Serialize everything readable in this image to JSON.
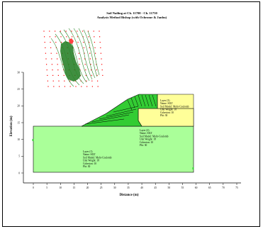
{
  "title": {
    "line1": "Soil Nailing at Ch. 11700 - Ch. 11750",
    "line2": "Analysis Method Bishop (with Ochrome & Janbu)"
  },
  "axes": {
    "xlabel": "Distance (m)",
    "ylabel": "Elevation (m)",
    "x_ticks": [
      "0",
      "5",
      "10",
      "15",
      "20",
      "25",
      "30",
      "35",
      "40",
      "45",
      "50",
      "55",
      "60",
      "65",
      "70",
      "75"
    ],
    "y_ticks": [
      "0",
      "5",
      "10",
      "15",
      "20",
      "25",
      "30"
    ]
  },
  "layers": [
    {
      "name": "Layer (1)",
      "lines": [
        "Layer (1)",
        "Name: SILT",
        "Soil Model: Mohr-Coulomb",
        "Unit Weight: 18",
        "Cohesion: 10",
        "Phi: 30"
      ]
    },
    {
      "name": "Layer (2)",
      "lines": [
        "Layer (2)",
        "Name: SILT",
        "Soil Model: Mohr-Coulomb",
        "Unit Weight: 18",
        "Cohesion: 10",
        "Phi: 30"
      ]
    },
    {
      "name": "Layer (3)",
      "lines": [
        "Layer (3)",
        "Name: SILT",
        "Soil Model: Mohr-Coulomb",
        "Unit Weight: 18",
        "Cohesion: 10",
        "Phi: 30"
      ]
    }
  ],
  "colors": {
    "bright_green": "#33cc33",
    "light_green": "#aaff99",
    "yellow": "#ffff99",
    "contour": "#2e8b2e",
    "grid_dots": "#ff0000"
  }
}
